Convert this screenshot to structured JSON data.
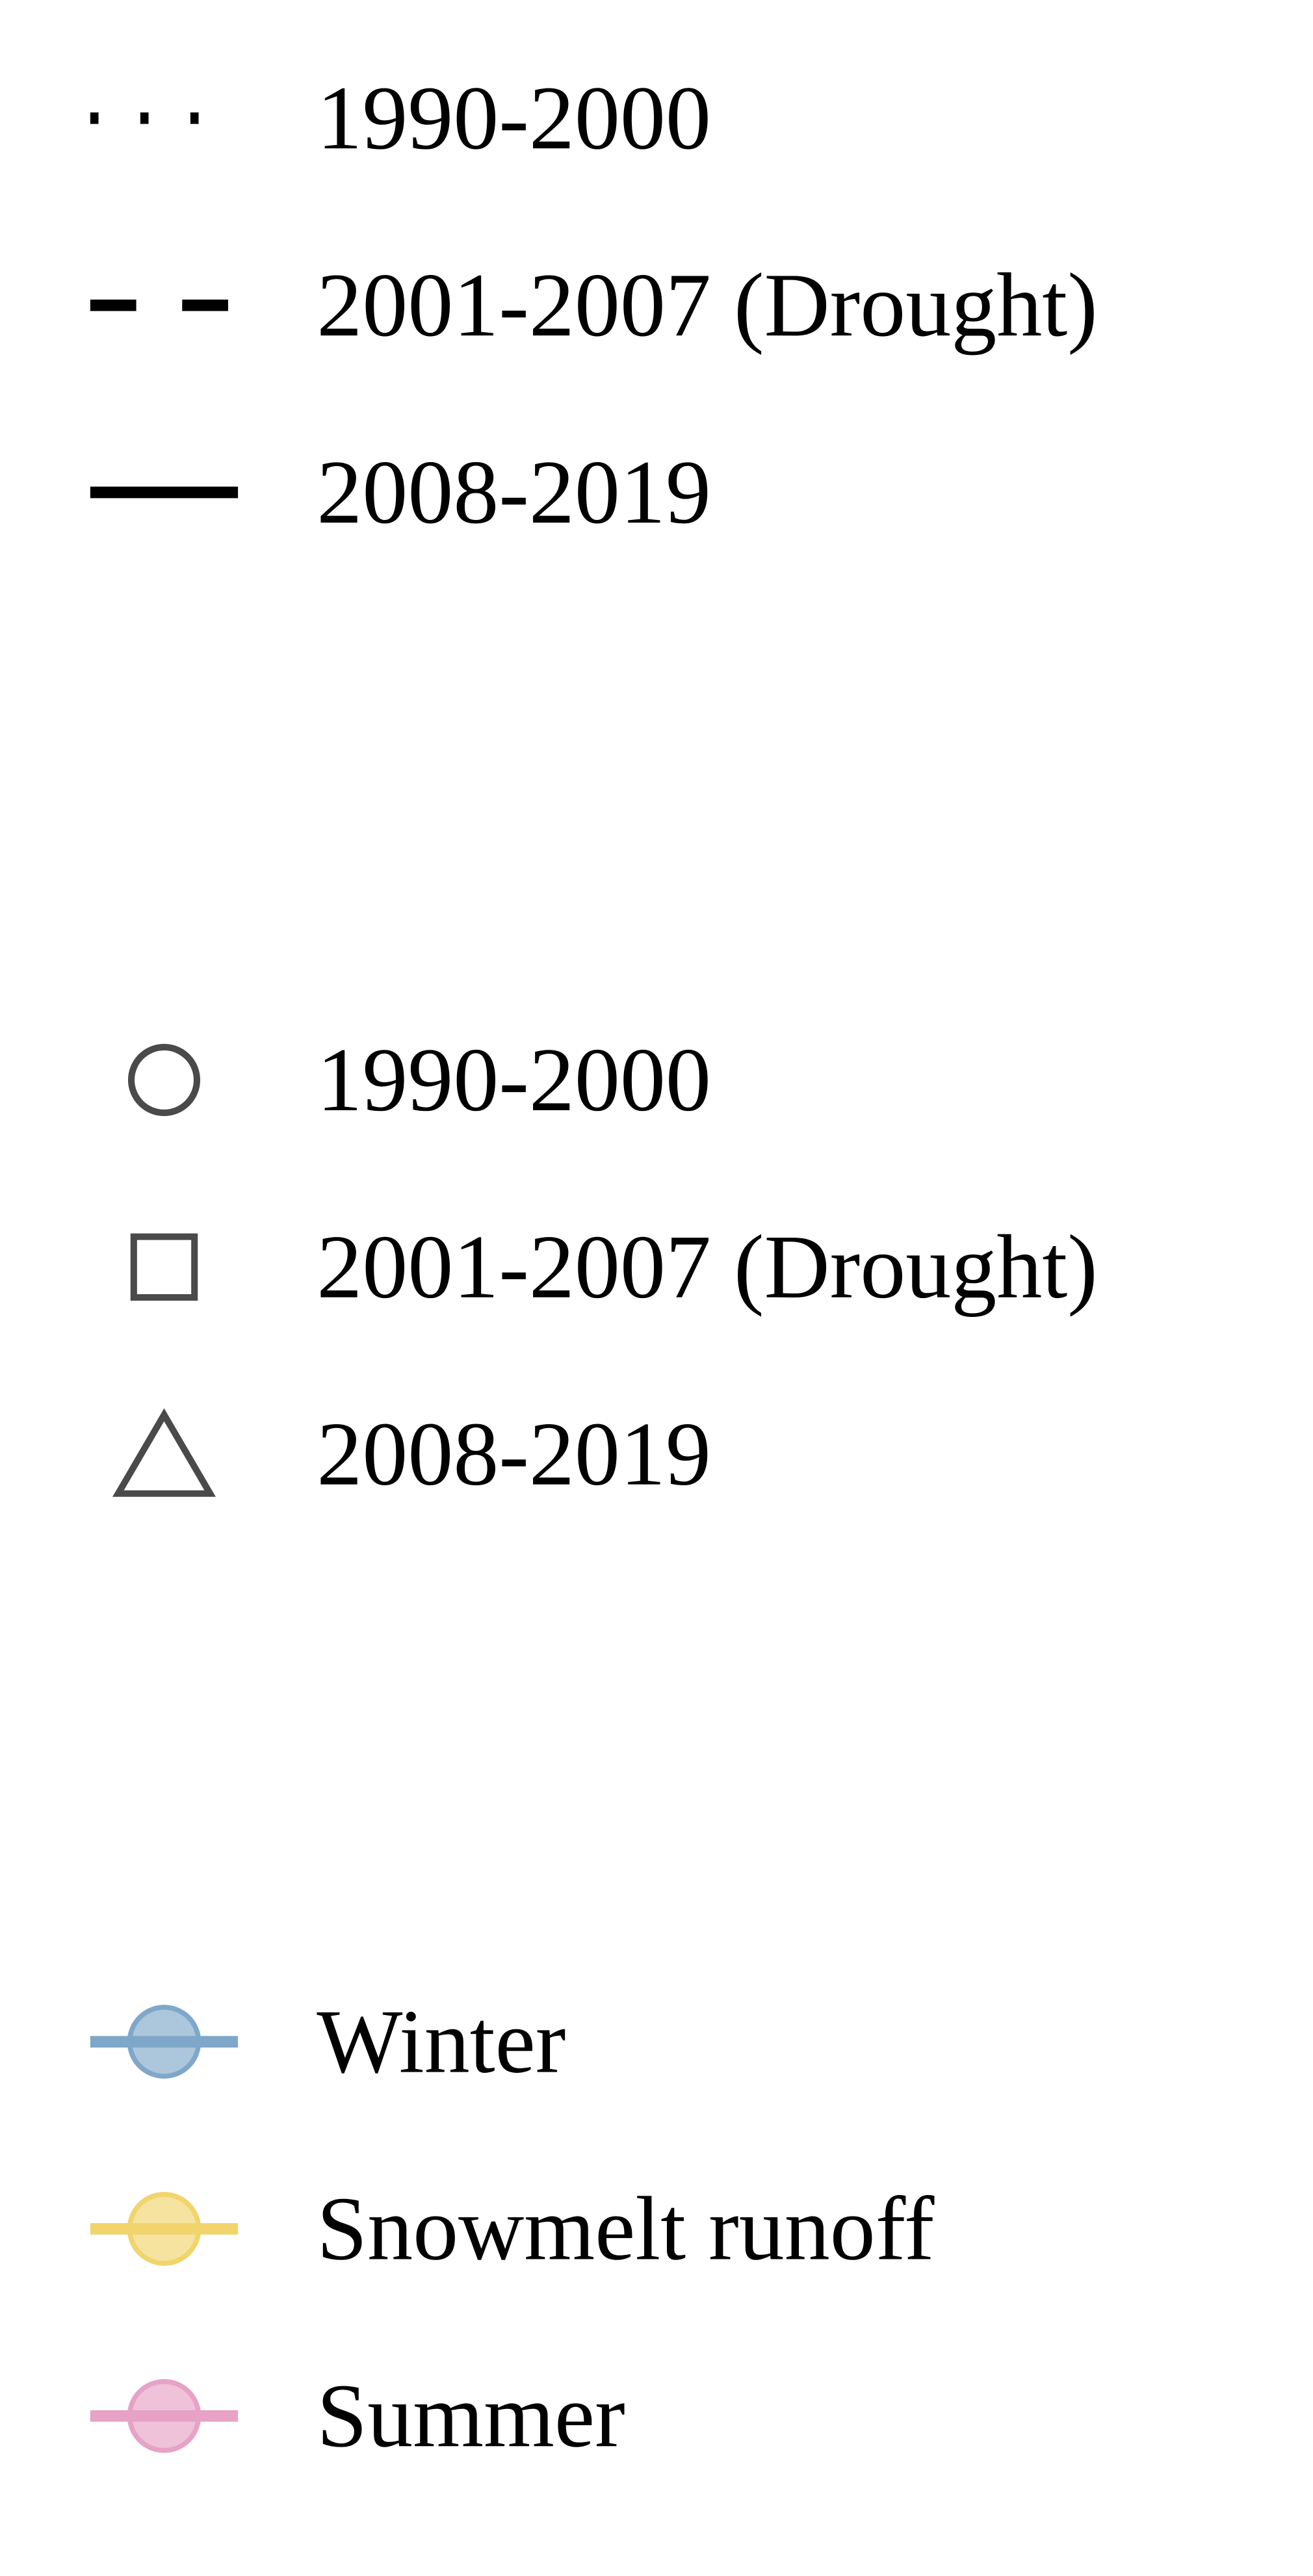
{
  "chart_data": {
    "type": "legend",
    "groups": [
      {
        "kind": "linestyle",
        "entries": [
          {
            "label": "1990-2000",
            "dash": "dotted",
            "color": "#000000"
          },
          {
            "label": "2001-2007 (Drought)",
            "dash": "dashed",
            "color": "#000000"
          },
          {
            "label": "2008-2019",
            "dash": "solid",
            "color": "#000000"
          }
        ]
      },
      {
        "kind": "marker",
        "entries": [
          {
            "label": "1990-2000",
            "marker": "circle",
            "color": "#4a4a4a"
          },
          {
            "label": "2001-2007 (Drought)",
            "marker": "square",
            "color": "#4a4a4a"
          },
          {
            "label": "2008-2019",
            "marker": "triangle",
            "color": "#4a4a4a"
          }
        ]
      },
      {
        "kind": "season",
        "entries": [
          {
            "label": "Winter",
            "color": "#7fa7c9"
          },
          {
            "label": "Snowmelt runoff",
            "color": "#f1d46b"
          },
          {
            "label": "Summer",
            "color": "#e7a2c6"
          }
        ]
      }
    ]
  }
}
